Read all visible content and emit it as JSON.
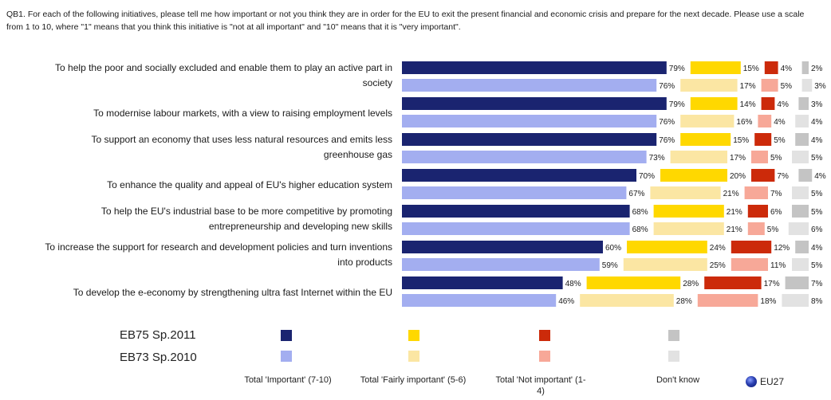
{
  "question": "QB1. For each of the following initiatives, please tell me how important or not you think they are in order for the EU to exit the present financial and economic crisis and prepare for the next decade. Please use a scale from 1 to 10, where \"1\" means that you think this initiative is \"not at all important\" and \"10\" means that it is \"very important\".",
  "legend": {
    "rows": [
      {
        "label": "EB75 Sp.2011"
      },
      {
        "label": "EB73 Sp.2010"
      }
    ],
    "columns": [
      {
        "label": "Total 'Important' (7-10)"
      },
      {
        "label": "Total 'Fairly important' (5-6)"
      },
      {
        "label": "Total 'Not important' (1-4)"
      },
      {
        "label": "Don't know"
      }
    ],
    "badge": "EU27"
  },
  "colors": {
    "important_2011": "#1a2470",
    "important_2010": "#a3aef0",
    "fairly_2011": "#ffd800",
    "fairly_2010": "#fbe6a3",
    "not_2011": "#cc2a0a",
    "not_2010": "#f7a898",
    "dk_2011": "#c4c4c4",
    "dk_2010": "#e2e2e2"
  },
  "chart_data": {
    "type": "bar",
    "orientation": "horizontal",
    "stacked_segments": [
      "Total 'Important' (7-10)",
      "Total 'Fairly important' (5-6)",
      "Total 'Not important' (1-4)",
      "Don't know"
    ],
    "series_names": [
      "EB75 Sp.2011",
      "EB73 Sp.2010"
    ],
    "unit": "%",
    "categories": [
      {
        "label": [
          "To help the poor and socially excluded and enable them to play an active part in",
          "society"
        ],
        "values": [
          [
            79,
            15,
            4,
            2
          ],
          [
            76,
            17,
            5,
            3
          ]
        ]
      },
      {
        "label": [
          "To modernise labour markets, with a view to raising employment levels"
        ],
        "values": [
          [
            79,
            14,
            4,
            3
          ],
          [
            76,
            16,
            4,
            4
          ]
        ]
      },
      {
        "label": [
          "To support an economy that uses less natural resources and emits less",
          "greenhouse gas"
        ],
        "values": [
          [
            76,
            15,
            5,
            4
          ],
          [
            73,
            17,
            5,
            5
          ]
        ]
      },
      {
        "label": [
          "To enhance the quality and appeal of EU's higher education system"
        ],
        "values": [
          [
            70,
            20,
            7,
            4
          ],
          [
            67,
            21,
            7,
            5
          ]
        ]
      },
      {
        "label": [
          "To help the EU's industrial base to be more competitive by promoting",
          "entrepreneurship and developing new skills"
        ],
        "values": [
          [
            68,
            21,
            6,
            5
          ],
          [
            68,
            21,
            5,
            6
          ]
        ]
      },
      {
        "label": [
          "To increase the support for research and development policies and turn inventions",
          "into products"
        ],
        "values": [
          [
            60,
            24,
            12,
            4
          ],
          [
            59,
            25,
            11,
            5
          ]
        ]
      },
      {
        "label": [
          "To develop the e-economy by strengthening ultra fast Internet within the EU"
        ],
        "values": [
          [
            48,
            28,
            17,
            7
          ],
          [
            46,
            28,
            18,
            8
          ]
        ]
      }
    ]
  }
}
